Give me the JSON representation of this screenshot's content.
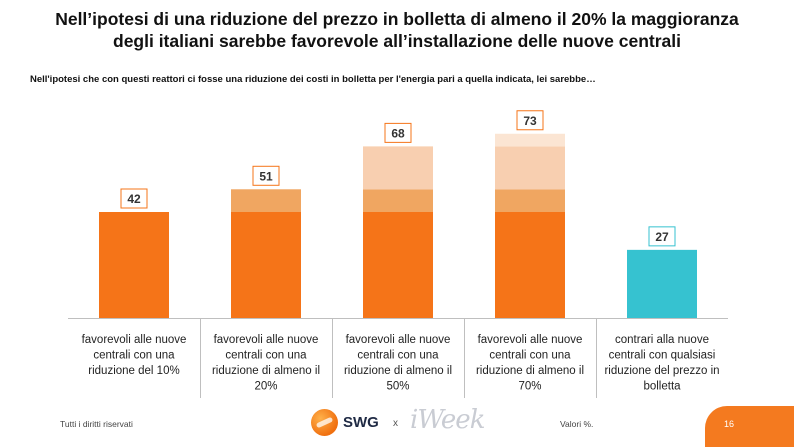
{
  "title_lines": [
    "Nell’ipotesi di una riduzione del prezzo in bolletta di almeno il 20% la maggioranza",
    "degli italiani sarebbe favorevole all’installazione delle nuove centrali"
  ],
  "subtitle": "Nell'ipotesi che con questi reattori ci fosse una riduzione dei costi in bolletta per l'energia pari a quella indicata, lei sarebbe…",
  "chart_data": {
    "type": "bar",
    "stacked": true,
    "categories": [
      [
        "favorevoli alle nuove",
        "centrali con una",
        "riduzione del 10%"
      ],
      [
        "favorevoli alle nuove",
        "centrali con una",
        "riduzione di almeno il",
        "20%"
      ],
      [
        "favorevoli alle nuove",
        "centrali con una",
        "riduzione di almeno il",
        "50%"
      ],
      [
        "favorevoli alle nuove",
        "centrali con una",
        "riduzione di almeno il",
        "70%"
      ],
      [
        "contrari alla nuove",
        "centrali con qualsiasi",
        "riduzione del prezzo in",
        "bolletta"
      ]
    ],
    "totals": [
      42,
      51,
      68,
      73,
      27
    ],
    "segments": [
      [
        {
          "value": 42,
          "color": "#f57418"
        }
      ],
      [
        {
          "value": 42,
          "color": "#f57418"
        },
        {
          "value": 9,
          "color": "#f0a661"
        }
      ],
      [
        {
          "value": 42,
          "color": "#f57418"
        },
        {
          "value": 9,
          "color": "#f0a661"
        },
        {
          "value": 17,
          "color": "#f8cfb0"
        }
      ],
      [
        {
          "value": 42,
          "color": "#f57418"
        },
        {
          "value": 9,
          "color": "#f0a661"
        },
        {
          "value": 17,
          "color": "#f8cfb0"
        },
        {
          "value": 5,
          "color": "#fbe5d3"
        }
      ],
      [
        {
          "value": 27,
          "color": "#36c2d0"
        }
      ]
    ],
    "label_border_colors": [
      "#f57418",
      "#f57418",
      "#f57418",
      "#f57418",
      "#36c2d0"
    ],
    "ylim": [
      0,
      80
    ],
    "grid": false,
    "legend": "none"
  },
  "footer": {
    "rights": "Tutti i diritti riservati",
    "values_note": "Valori %.",
    "page": "16",
    "logo_swg": "SWG",
    "logo_x": "x",
    "logo_week": "iWeek"
  }
}
